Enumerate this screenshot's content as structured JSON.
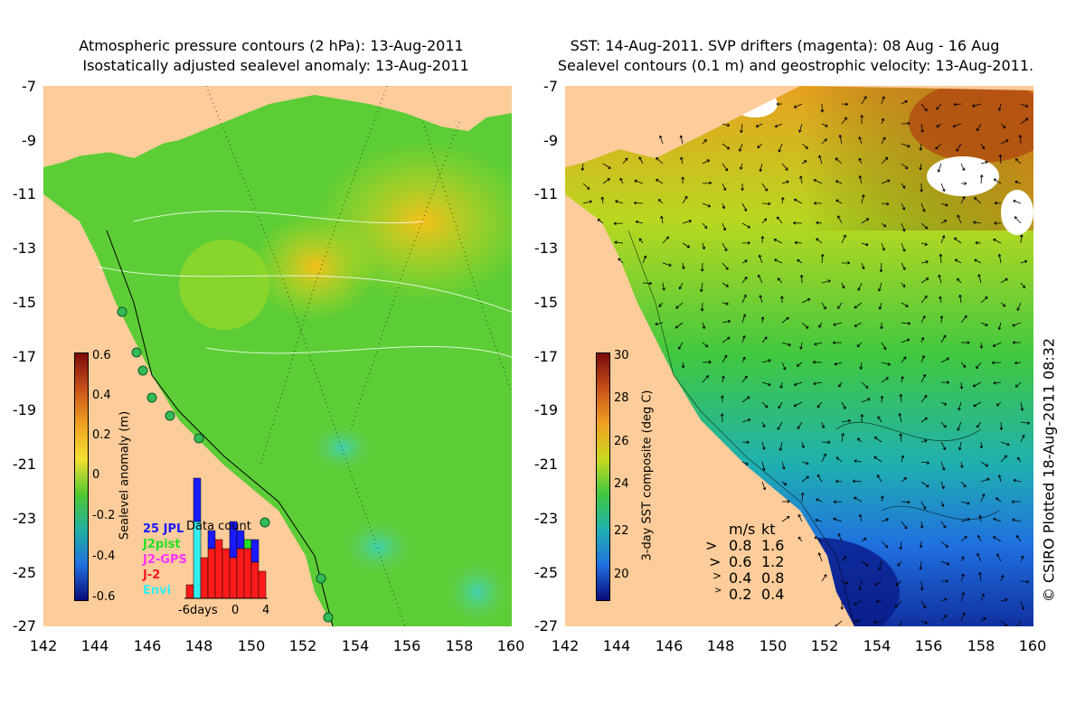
{
  "left_panel": {
    "title_line1": "Atmospheric pressure contours (2 hPa): 13-Aug-2011",
    "title_line2": "Isostatically adjusted sealevel anomaly: 13-Aug-2011",
    "x_ticks": [
      "142",
      "144",
      "146",
      "148",
      "150",
      "152",
      "154",
      "156",
      "158",
      "160"
    ],
    "y_ticks": [
      "-7",
      "-9",
      "-11",
      "-13",
      "-15",
      "-17",
      "-19",
      "-21",
      "-23",
      "-25",
      "-27"
    ],
    "colorbar": {
      "label": "Sealevel anomaly (m)",
      "ticks": [
        "0.6",
        "0.4",
        "0.2",
        "0",
        "-0.2",
        "-0.4",
        "-0.6"
      ],
      "range": [
        -0.6,
        0.6
      ]
    },
    "legend": {
      "title": "Data count",
      "missions": [
        {
          "label": "25 JPL",
          "color": "#1a1aff"
        },
        {
          "label": "J2pist",
          "color": "#22e022"
        },
        {
          "label": "J2-GPS",
          "color": "#ff33ff"
        },
        {
          "label": "J-2",
          "color": "#ff1a1a"
        },
        {
          "label": "Envi",
          "color": "#33eeee"
        }
      ],
      "x_axis": [
        "-6days",
        "0",
        "4"
      ]
    }
  },
  "right_panel": {
    "title_line1": "SST: 14-Aug-2011. SVP drifters (magenta): 08 Aug - 16 Aug",
    "title_line2": "Sealevel contours (0.1 m) and geostrophic velocity: 13-Aug-2011.",
    "x_ticks": [
      "142",
      "144",
      "146",
      "148",
      "150",
      "152",
      "154",
      "156",
      "158",
      "160"
    ],
    "y_ticks": [
      "-7",
      "-9",
      "-11",
      "-13",
      "-15",
      "-17",
      "-19",
      "-21",
      "-23",
      "-25",
      "-27"
    ],
    "colorbar": {
      "label": "3-day SST composite (deg C)",
      "ticks": [
        "30",
        "28",
        "26",
        "24",
        "22",
        "20"
      ],
      "range": [
        19,
        30
      ]
    },
    "velocity_legend": {
      "header_ms": "m/s",
      "header_kt": "kt",
      "rows": [
        {
          "ms": "0.8",
          "kt": "1.6"
        },
        {
          "ms": "0.6",
          "kt": "1.2"
        },
        {
          "ms": "0.4",
          "kt": "0.8"
        },
        {
          "ms": "0.2",
          "kt": "0.4"
        }
      ]
    }
  },
  "credit": "© CSIRO Plotted 18-Aug-2011 08:32",
  "colors": {
    "land": "#fccc9a",
    "ocean_green": "#5fcf2f",
    "ocean_blue": "#2070e0",
    "warm": "#e06010"
  }
}
